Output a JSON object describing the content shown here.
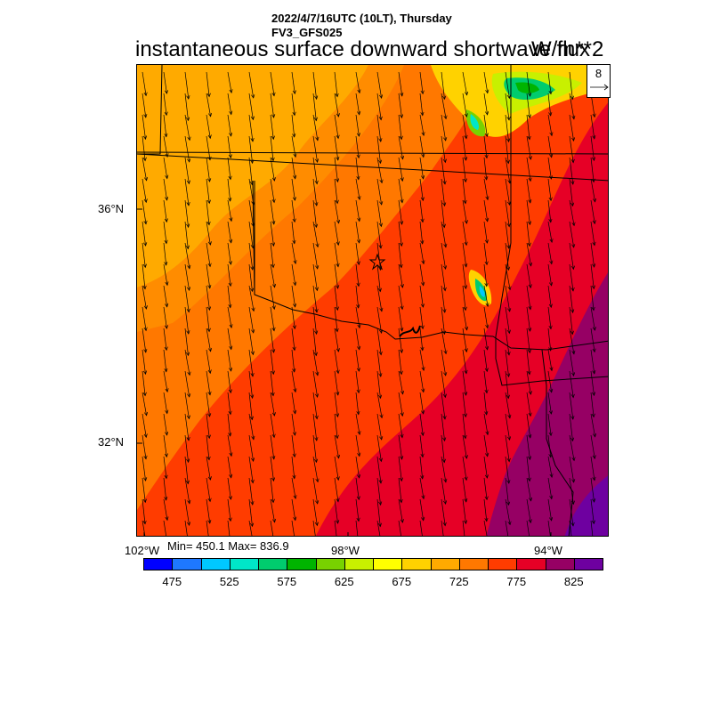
{
  "header": {
    "date_line": "2022/4/7/16UTC (10LT), Thursday",
    "model_line": "FV3_GFS025",
    "title": "instantaneous surface downward shortwave flux",
    "units": "W/m**2"
  },
  "vector_reference": {
    "value": "8"
  },
  "map": {
    "lat_labels": [
      "36°N",
      "32°N"
    ],
    "lon_labels": [
      "102°W",
      "98°W",
      "94°W"
    ],
    "marker": "star-icon",
    "wind_direction": "from north-northwest"
  },
  "stats": {
    "text": "Min= 450.1 Max= 836.9"
  },
  "colorbar": {
    "colors": [
      "#0000ff",
      "#1e78ff",
      "#00c8ff",
      "#00e6c8",
      "#00cc6e",
      "#00b400",
      "#78d200",
      "#c8f000",
      "#ffff00",
      "#ffd200",
      "#ffaa00",
      "#ff7800",
      "#ff3c00",
      "#e60026",
      "#960064",
      "#6e00a0"
    ],
    "labels": [
      "475",
      "525",
      "575",
      "625",
      "675",
      "725",
      "775",
      "825"
    ]
  }
}
